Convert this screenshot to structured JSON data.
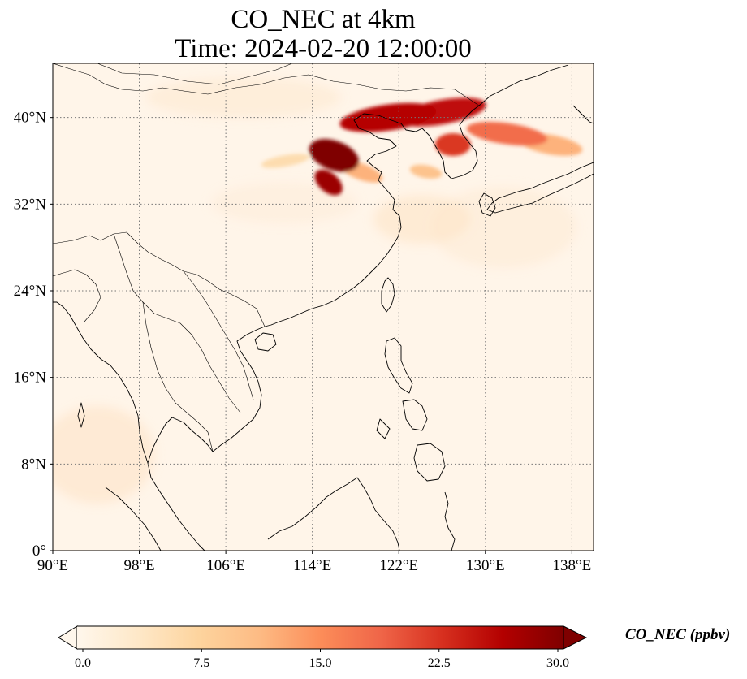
{
  "title": {
    "line1": "CO_NEC at 4km",
    "line2": "Time: 2024-02-20 12:00:00"
  },
  "map": {
    "variable": "CO_NEC",
    "lon_range": [
      90,
      140
    ],
    "lat_range": [
      0,
      45
    ],
    "x_ticks": [
      {
        "value": 90,
        "label": "90°E"
      },
      {
        "value": 98,
        "label": "98°E"
      },
      {
        "value": 106,
        "label": "106°E"
      },
      {
        "value": 114,
        "label": "114°E"
      },
      {
        "value": 122,
        "label": "122°E"
      },
      {
        "value": 130,
        "label": "130°E"
      },
      {
        "value": 138,
        "label": "138°E"
      }
    ],
    "y_ticks": [
      {
        "value": 0,
        "label": "0°"
      },
      {
        "value": 8,
        "label": "8°N"
      },
      {
        "value": 16,
        "label": "16°N"
      },
      {
        "value": 24,
        "label": "24°N"
      },
      {
        "value": 32,
        "label": "32°N"
      },
      {
        "value": 40,
        "label": "40°N"
      }
    ],
    "gridlines": true,
    "background_color": "#fff5e9",
    "plumes": [
      {
        "name": "north-china-core",
        "lon": 116.0,
        "lat": 36.5,
        "level": 30
      },
      {
        "name": "north-china-south-tail",
        "lon": 115.5,
        "lat": 34.0,
        "level": 28
      },
      {
        "name": "bohai-band",
        "lon": 121.0,
        "lat": 40.0,
        "level": 26
      },
      {
        "name": "north-korea-band",
        "lon": 126.0,
        "lat": 40.5,
        "level": 25
      },
      {
        "name": "korea-peninsula",
        "lon": 127.0,
        "lat": 37.5,
        "level": 22
      },
      {
        "name": "japan-sea-band",
        "lon": 132.0,
        "lat": 38.5,
        "level": 18
      },
      {
        "name": "east-japan-tail",
        "lon": 136.0,
        "lat": 37.5,
        "level": 12
      },
      {
        "name": "shandong-south",
        "lon": 118.5,
        "lat": 35.0,
        "level": 12
      },
      {
        "name": "yellow-sea-patch",
        "lon": 124.5,
        "lat": 35.0,
        "level": 10
      },
      {
        "name": "west-thin-plume",
        "lon": 111.5,
        "lat": 36.0,
        "level": 6
      }
    ]
  },
  "colorbar": {
    "title": "CO_NEC (ppbv)",
    "min": 0.0,
    "max": 30.0,
    "ticks": [
      {
        "value": 0,
        "label": "0.0"
      },
      {
        "value": 7.5,
        "label": "7.5"
      },
      {
        "value": 15,
        "label": "15.0"
      },
      {
        "value": 22.5,
        "label": "22.5"
      },
      {
        "value": 30,
        "label": "30.0"
      }
    ],
    "colors": [
      "#fff7ec",
      "#fee8c8",
      "#fdd49e",
      "#fdbb84",
      "#fc8d59",
      "#ef6548",
      "#d7301f",
      "#b30000",
      "#7f0000"
    ],
    "extend": "both"
  }
}
